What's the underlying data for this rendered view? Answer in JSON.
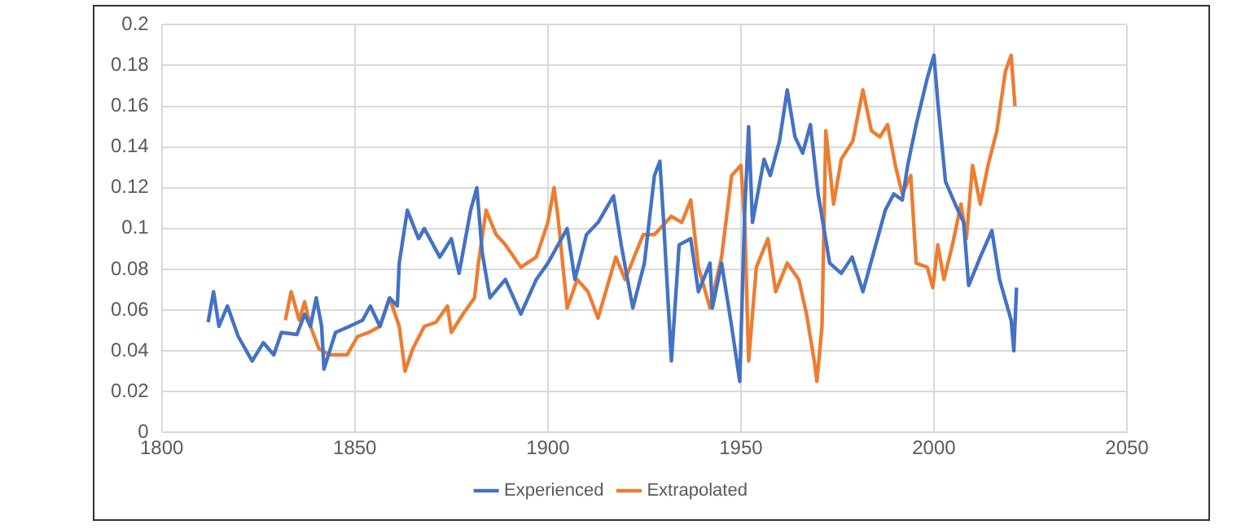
{
  "chart_data": {
    "type": "line",
    "xlim": [
      1800,
      2050
    ],
    "xticks": [
      1800,
      1850,
      1900,
      1950,
      2000,
      2050
    ],
    "ylim": [
      0,
      0.2
    ],
    "yticks": [
      0,
      0.02,
      0.04,
      0.06,
      0.08,
      0.1,
      0.12,
      0.14,
      0.16,
      0.18,
      0.2
    ],
    "grid": true,
    "legend": "bottom",
    "marker": "none",
    "line_style": "solid",
    "series": [
      {
        "name": "Experienced",
        "color": "#4472c4",
        "x": [
          1812,
          1813.4,
          1814.8,
          1817,
          1819.8,
          1823.4,
          1826.3,
          1829,
          1831,
          1835,
          1837,
          1838.5,
          1840,
          1841.4,
          1842,
          1845,
          1848.6,
          1852,
          1854,
          1856.5,
          1859,
          1861,
          1861.5,
          1863.6,
          1866.5,
          1868,
          1872,
          1875,
          1877,
          1880,
          1881.6,
          1883,
          1885,
          1889,
          1893,
          1897,
          1900,
          1905,
          1907,
          1910,
          1913,
          1917,
          1919,
          1922,
          1925,
          1927.6,
          1929,
          1930,
          1932,
          1934,
          1937,
          1939,
          1942,
          1942.6,
          1945,
          1947.6,
          1949.7,
          1951,
          1952,
          1953,
          1956,
          1957.6,
          1960,
          1962,
          1964,
          1966,
          1968,
          1970,
          1973,
          1976,
          1978.8,
          1981.6,
          1984.5,
          1987.4,
          1989.6,
          1991.8,
          1993.2,
          1995.4,
          1998.3,
          2000,
          2001,
          2003,
          2005.5,
          2007.7,
          2009,
          2012,
          2015,
          2017,
          2020,
          2020.7,
          2021.4
        ],
        "values": [
          0.054,
          0.069,
          0.052,
          0.062,
          0.047,
          0.035,
          0.044,
          0.038,
          0.049,
          0.048,
          0.058,
          0.052,
          0.066,
          0.052,
          0.031,
          0.049,
          0.052,
          0.055,
          0.062,
          0.052,
          0.066,
          0.062,
          0.083,
          0.109,
          0.095,
          0.1,
          0.086,
          0.095,
          0.078,
          0.109,
          0.12,
          0.088,
          0.066,
          0.075,
          0.058,
          0.075,
          0.083,
          0.1,
          0.075,
          0.097,
          0.103,
          0.116,
          0.092,
          0.061,
          0.083,
          0.126,
          0.133,
          0.103,
          0.035,
          0.092,
          0.095,
          0.069,
          0.083,
          0.061,
          0.083,
          0.052,
          0.025,
          0.109,
          0.15,
          0.103,
          0.134,
          0.126,
          0.143,
          0.168,
          0.145,
          0.137,
          0.151,
          0.117,
          0.083,
          0.078,
          0.086,
          0.069,
          0.089,
          0.109,
          0.117,
          0.114,
          0.131,
          0.151,
          0.174,
          0.185,
          0.162,
          0.123,
          0.112,
          0.103,
          0.072,
          0.086,
          0.099,
          0.075,
          0.055,
          0.04,
          0.071
        ]
      },
      {
        "name": "Extrapolated",
        "color": "#ed7d31",
        "x": [
          1832,
          1833.5,
          1835.6,
          1837,
          1838.5,
          1840.7,
          1843.5,
          1848,
          1850.7,
          1853.6,
          1856.5,
          1859,
          1861.5,
          1863,
          1865,
          1868,
          1871,
          1874,
          1875,
          1878,
          1881,
          1882,
          1884,
          1886.6,
          1889,
          1893,
          1897,
          1900,
          1901.6,
          1902.6,
          1905,
          1907.6,
          1910.4,
          1913,
          1917.6,
          1920,
          1924.7,
          1927.6,
          1932,
          1934.7,
          1937,
          1939,
          1942,
          1945,
          1947.6,
          1950,
          1951,
          1952,
          1954,
          1957,
          1959,
          1962,
          1965,
          1967,
          1969,
          1969.7,
          1971,
          1972,
          1974,
          1976,
          1979,
          1981.6,
          1983.8,
          1986,
          1988,
          1990,
          1991.8,
          1994,
          1995.4,
          1998.3,
          1999.7,
          2001,
          2002.6,
          2004.8,
          2007,
          2008.4,
          2010,
          2012,
          2014,
          2016.3,
          2018.5,
          2020,
          2021
        ],
        "values": [
          0.055,
          0.069,
          0.055,
          0.064,
          0.052,
          0.041,
          0.038,
          0.038,
          0.047,
          0.049,
          0.052,
          0.066,
          0.052,
          0.03,
          0.041,
          0.052,
          0.054,
          0.062,
          0.049,
          0.058,
          0.066,
          0.083,
          0.109,
          0.097,
          0.092,
          0.081,
          0.086,
          0.103,
          0.12,
          0.106,
          0.061,
          0.075,
          0.069,
          0.056,
          0.086,
          0.075,
          0.097,
          0.097,
          0.106,
          0.103,
          0.114,
          0.081,
          0.061,
          0.086,
          0.126,
          0.131,
          0.103,
          0.035,
          0.081,
          0.095,
          0.069,
          0.083,
          0.075,
          0.058,
          0.035,
          0.025,
          0.052,
          0.148,
          0.112,
          0.134,
          0.143,
          0.168,
          0.148,
          0.145,
          0.151,
          0.131,
          0.117,
          0.126,
          0.083,
          0.081,
          0.071,
          0.092,
          0.075,
          0.092,
          0.112,
          0.095,
          0.131,
          0.112,
          0.131,
          0.148,
          0.177,
          0.185,
          0.16
        ]
      }
    ]
  }
}
